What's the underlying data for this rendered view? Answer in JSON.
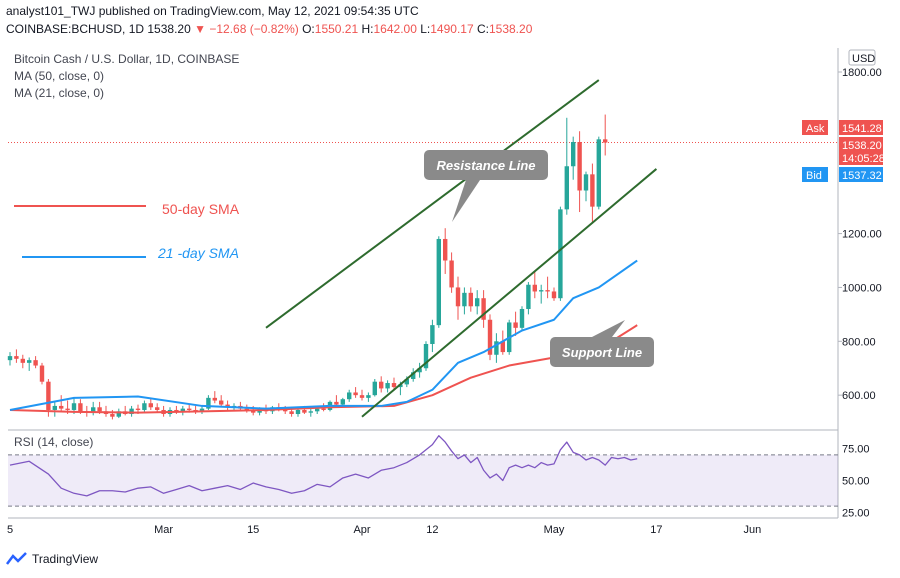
{
  "header": {
    "publish_line": "analyst101_TWJ published on TradingView.com, May 12, 2021 09:54:35 UTC",
    "symbol": "COINBASE:BCHUSD, 1D",
    "last": "1538.20",
    "change": "−12.68 (−0.82%)",
    "o_label": "O:",
    "o": "1550.21",
    "h_label": "H:",
    "h": "1642.00",
    "l_label": "L:",
    "l": "1490.17",
    "c_label": "C:",
    "c": "1538.20"
  },
  "legend": {
    "title": "Bitcoin Cash / U.S. Dollar, 1D, COINBASE",
    "ma50": "MA (50, close, 0)",
    "ma21": "MA (21, close, 0)"
  },
  "price_scale": {
    "currency": "USD",
    "ticks": [
      {
        "value": 1800,
        "label": "1800.00"
      },
      {
        "value": 1200,
        "label": "1200.00"
      },
      {
        "value": 1000,
        "label": "1000.00"
      },
      {
        "value": 800,
        "label": "800.00"
      },
      {
        "value": 600,
        "label": "600.00"
      }
    ],
    "ask_label": "Ask",
    "ask": "1541.28",
    "last": "1538.20",
    "countdown": "14:05:28",
    "bid_label": "Bid",
    "bid": "1537.32"
  },
  "rsi": {
    "label": "RSI (14, close)",
    "ticks": [
      {
        "value": 75,
        "label": "75.00"
      },
      {
        "value": 50,
        "label": "50.00"
      },
      {
        "value": 25,
        "label": "25.00"
      }
    ],
    "upper": 70,
    "lower": 30
  },
  "time_axis": [
    {
      "day": 0,
      "label": "5"
    },
    {
      "day": 24,
      "label": "Mar"
    },
    {
      "day": 38,
      "label": "15"
    },
    {
      "day": 55,
      "label": "Apr"
    },
    {
      "day": 66,
      "label": "12"
    },
    {
      "day": 85,
      "label": "May"
    },
    {
      "day": 101,
      "label": "17"
    },
    {
      "day": 116,
      "label": "Jun"
    }
  ],
  "annotations": {
    "resistance": "Resistance Line",
    "support": "Support Line",
    "sma50": "50-day SMA",
    "sma21": "21 -day SMA"
  },
  "colors": {
    "up": "#26a69a",
    "down": "#ef5350",
    "ma50": "#ef5350",
    "ma21": "#2196f3",
    "channel": "#2e6b2e",
    "rsi": "#7e57c2",
    "callout": "#8a8a8a"
  },
  "brand": "TradingView",
  "chart_data": {
    "type": "candlestick",
    "x_unit": "daily candles from Feb 5 to May 12, 2021",
    "ylim": [
      520,
      1880
    ],
    "candles": [
      [
        730,
        760,
        710,
        745
      ],
      [
        745,
        770,
        720,
        735
      ],
      [
        735,
        750,
        700,
        720
      ],
      [
        720,
        740,
        690,
        730
      ],
      [
        730,
        745,
        700,
        710
      ],
      [
        710,
        720,
        640,
        650
      ],
      [
        650,
        660,
        520,
        545
      ],
      [
        545,
        575,
        520,
        560
      ],
      [
        560,
        600,
        540,
        550
      ],
      [
        550,
        580,
        530,
        545
      ],
      [
        545,
        590,
        530,
        570
      ],
      [
        570,
        585,
        530,
        540
      ],
      [
        540,
        560,
        520,
        535
      ],
      [
        535,
        575,
        525,
        555
      ],
      [
        555,
        575,
        530,
        540
      ],
      [
        540,
        560,
        520,
        530
      ],
      [
        530,
        545,
        510,
        520
      ],
      [
        520,
        550,
        515,
        540
      ],
      [
        540,
        560,
        525,
        530
      ],
      [
        530,
        560,
        520,
        550
      ],
      [
        550,
        565,
        530,
        545
      ],
      [
        545,
        580,
        535,
        570
      ],
      [
        570,
        590,
        545,
        555
      ],
      [
        555,
        570,
        535,
        545
      ],
      [
        545,
        560,
        520,
        530
      ],
      [
        530,
        555,
        520,
        545
      ],
      [
        545,
        560,
        530,
        540
      ],
      [
        540,
        560,
        525,
        550
      ],
      [
        550,
        565,
        535,
        545
      ],
      [
        545,
        560,
        530,
        540
      ],
      [
        540,
        560,
        530,
        550
      ],
      [
        550,
        600,
        545,
        590
      ],
      [
        590,
        615,
        570,
        580
      ],
      [
        580,
        600,
        555,
        565
      ],
      [
        565,
        580,
        545,
        555
      ],
      [
        555,
        570,
        540,
        560
      ],
      [
        560,
        575,
        540,
        550
      ],
      [
        550,
        565,
        535,
        545
      ],
      [
        545,
        560,
        525,
        535
      ],
      [
        535,
        555,
        525,
        550
      ],
      [
        550,
        565,
        530,
        540
      ],
      [
        540,
        560,
        530,
        555
      ],
      [
        555,
        570,
        540,
        545
      ],
      [
        545,
        560,
        530,
        540
      ],
      [
        540,
        555,
        520,
        530
      ],
      [
        530,
        550,
        520,
        545
      ],
      [
        545,
        560,
        530,
        535
      ],
      [
        535,
        550,
        520,
        540
      ],
      [
        540,
        560,
        530,
        550
      ],
      [
        550,
        570,
        540,
        545
      ],
      [
        545,
        580,
        540,
        575
      ],
      [
        575,
        600,
        555,
        565
      ],
      [
        565,
        590,
        555,
        585
      ],
      [
        585,
        620,
        575,
        610
      ],
      [
        610,
        630,
        590,
        600
      ],
      [
        600,
        620,
        580,
        590
      ],
      [
        590,
        610,
        575,
        600
      ],
      [
        600,
        660,
        595,
        650
      ],
      [
        650,
        670,
        610,
        625
      ],
      [
        625,
        655,
        610,
        645
      ],
      [
        645,
        665,
        620,
        630
      ],
      [
        630,
        650,
        600,
        640
      ],
      [
        640,
        670,
        630,
        660
      ],
      [
        660,
        700,
        650,
        685
      ],
      [
        685,
        720,
        665,
        700
      ],
      [
        700,
        800,
        690,
        790
      ],
      [
        790,
        880,
        760,
        860
      ],
      [
        860,
        1190,
        850,
        1180
      ],
      [
        1180,
        1220,
        1050,
        1100
      ],
      [
        1100,
        1130,
        980,
        1000
      ],
      [
        1000,
        1040,
        880,
        930
      ],
      [
        930,
        1000,
        900,
        980
      ],
      [
        980,
        1000,
        910,
        930
      ],
      [
        930,
        990,
        900,
        960
      ],
      [
        960,
        990,
        850,
        880
      ],
      [
        880,
        900,
        730,
        750
      ],
      [
        750,
        830,
        720,
        800
      ],
      [
        800,
        840,
        750,
        760
      ],
      [
        760,
        880,
        750,
        870
      ],
      [
        870,
        910,
        820,
        850
      ],
      [
        850,
        930,
        840,
        920
      ],
      [
        920,
        1020,
        900,
        1010
      ],
      [
        1010,
        1060,
        960,
        985
      ],
      [
        985,
        1010,
        940,
        990
      ],
      [
        990,
        1040,
        960,
        985
      ],
      [
        985,
        1000,
        950,
        960
      ],
      [
        960,
        1300,
        950,
        1290
      ],
      [
        1290,
        1630,
        1270,
        1450
      ],
      [
        1450,
        1560,
        1400,
        1540
      ],
      [
        1540,
        1580,
        1280,
        1360
      ],
      [
        1360,
        1430,
        1320,
        1420
      ],
      [
        1420,
        1460,
        1240,
        1300
      ],
      [
        1300,
        1560,
        1290,
        1550
      ],
      [
        1550,
        1642,
        1490,
        1538
      ]
    ],
    "ma50": [
      [
        0,
        545
      ],
      [
        10,
        538
      ],
      [
        20,
        535
      ],
      [
        30,
        540
      ],
      [
        40,
        545
      ],
      [
        50,
        555
      ],
      [
        60,
        560
      ],
      [
        66,
        600
      ],
      [
        72,
        665
      ],
      [
        78,
        710
      ],
      [
        85,
        740
      ],
      [
        92,
        770
      ],
      [
        98,
        860
      ]
    ],
    "ma21": [
      [
        0,
        545
      ],
      [
        10,
        590
      ],
      [
        20,
        595
      ],
      [
        30,
        560
      ],
      [
        40,
        550
      ],
      [
        50,
        560
      ],
      [
        58,
        560
      ],
      [
        62,
        575
      ],
      [
        66,
        620
      ],
      [
        70,
        720
      ],
      [
        74,
        760
      ],
      [
        80,
        840
      ],
      [
        85,
        880
      ],
      [
        88,
        960
      ],
      [
        92,
        1000
      ],
      [
        98,
        1100
      ]
    ],
    "resistance_line": [
      [
        40,
        850
      ],
      [
        92,
        1770
      ]
    ],
    "support_line": [
      [
        55,
        520
      ],
      [
        101,
        1440
      ]
    ],
    "rsi_values": [
      [
        0,
        62
      ],
      [
        3,
        65
      ],
      [
        6,
        55
      ],
      [
        8,
        44
      ],
      [
        10,
        40
      ],
      [
        12,
        38
      ],
      [
        14,
        42
      ],
      [
        16,
        42
      ],
      [
        18,
        41
      ],
      [
        20,
        44
      ],
      [
        22,
        45
      ],
      [
        24,
        40
      ],
      [
        26,
        43
      ],
      [
        28,
        46
      ],
      [
        30,
        42
      ],
      [
        32,
        44
      ],
      [
        34,
        46
      ],
      [
        36,
        43
      ],
      [
        38,
        48
      ],
      [
        40,
        45
      ],
      [
        42,
        43
      ],
      [
        44,
        40
      ],
      [
        46,
        42
      ],
      [
        48,
        47
      ],
      [
        50,
        45
      ],
      [
        52,
        52
      ],
      [
        54,
        55
      ],
      [
        56,
        52
      ],
      [
        58,
        58
      ],
      [
        60,
        60
      ],
      [
        62,
        64
      ],
      [
        64,
        70
      ],
      [
        66,
        78
      ],
      [
        67,
        85
      ],
      [
        68,
        80
      ],
      [
        69,
        73
      ],
      [
        70,
        67
      ],
      [
        71,
        70
      ],
      [
        72,
        64
      ],
      [
        73,
        68
      ],
      [
        74,
        58
      ],
      [
        75,
        52
      ],
      [
        76,
        55
      ],
      [
        77,
        50
      ],
      [
        78,
        60
      ],
      [
        79,
        62
      ],
      [
        80,
        60
      ],
      [
        81,
        62
      ],
      [
        82,
        60
      ],
      [
        83,
        64
      ],
      [
        84,
        62
      ],
      [
        85,
        63
      ],
      [
        86,
        74
      ],
      [
        87,
        80
      ],
      [
        88,
        72
      ],
      [
        89,
        70
      ],
      [
        90,
        66
      ],
      [
        91,
        68
      ],
      [
        92,
        66
      ],
      [
        93,
        62
      ],
      [
        94,
        68
      ],
      [
        95,
        67
      ],
      [
        96,
        68
      ],
      [
        97,
        66
      ],
      [
        98,
        67
      ]
    ]
  }
}
